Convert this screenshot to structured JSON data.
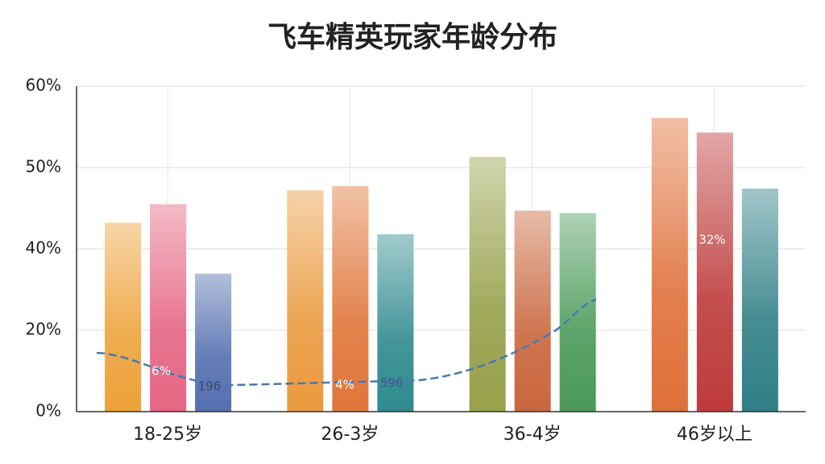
{
  "chart_data": {
    "type": "bar",
    "title": "飞车精英玩家年龄分布",
    "categories": [
      "18-25岁",
      "26-3岁",
      "36-4岁",
      "46岁以上"
    ],
    "series": [
      {
        "colors": [
          "#eda23a",
          "#ea9a3e",
          "#97a04a",
          "#e0703a"
        ],
        "values": [
          43.2,
          47.2,
          51.3,
          56.1
        ]
      },
      {
        "colors": [
          "#e56683",
          "#e0763a",
          "#c9673e",
          "#bd3b3a"
        ],
        "values": [
          45.5,
          47.7,
          44.7,
          54.3
        ]
      },
      {
        "colors": [
          "#5470b0",
          "#2f8a8e",
          "#4a9a58",
          "#2f7f86"
        ],
        "values": [
          33.9,
          41.8,
          44.4,
          47.4
        ]
      }
    ],
    "ylim": [
      0,
      60
    ],
    "yticks": [
      {
        "value": 0,
        "label": "0%"
      },
      {
        "value": 20,
        "label": "20%"
      },
      {
        "value": 40,
        "label": "40%"
      },
      {
        "value": 50,
        "label": "50%"
      },
      {
        "value": 60,
        "label": "60%"
      }
    ],
    "grid": true,
    "annotations": [
      {
        "text": "6%"
      },
      {
        "text": "196"
      },
      {
        "text": "4%"
      },
      {
        "text": "596"
      },
      {
        "text": "32%"
      }
    ]
  }
}
